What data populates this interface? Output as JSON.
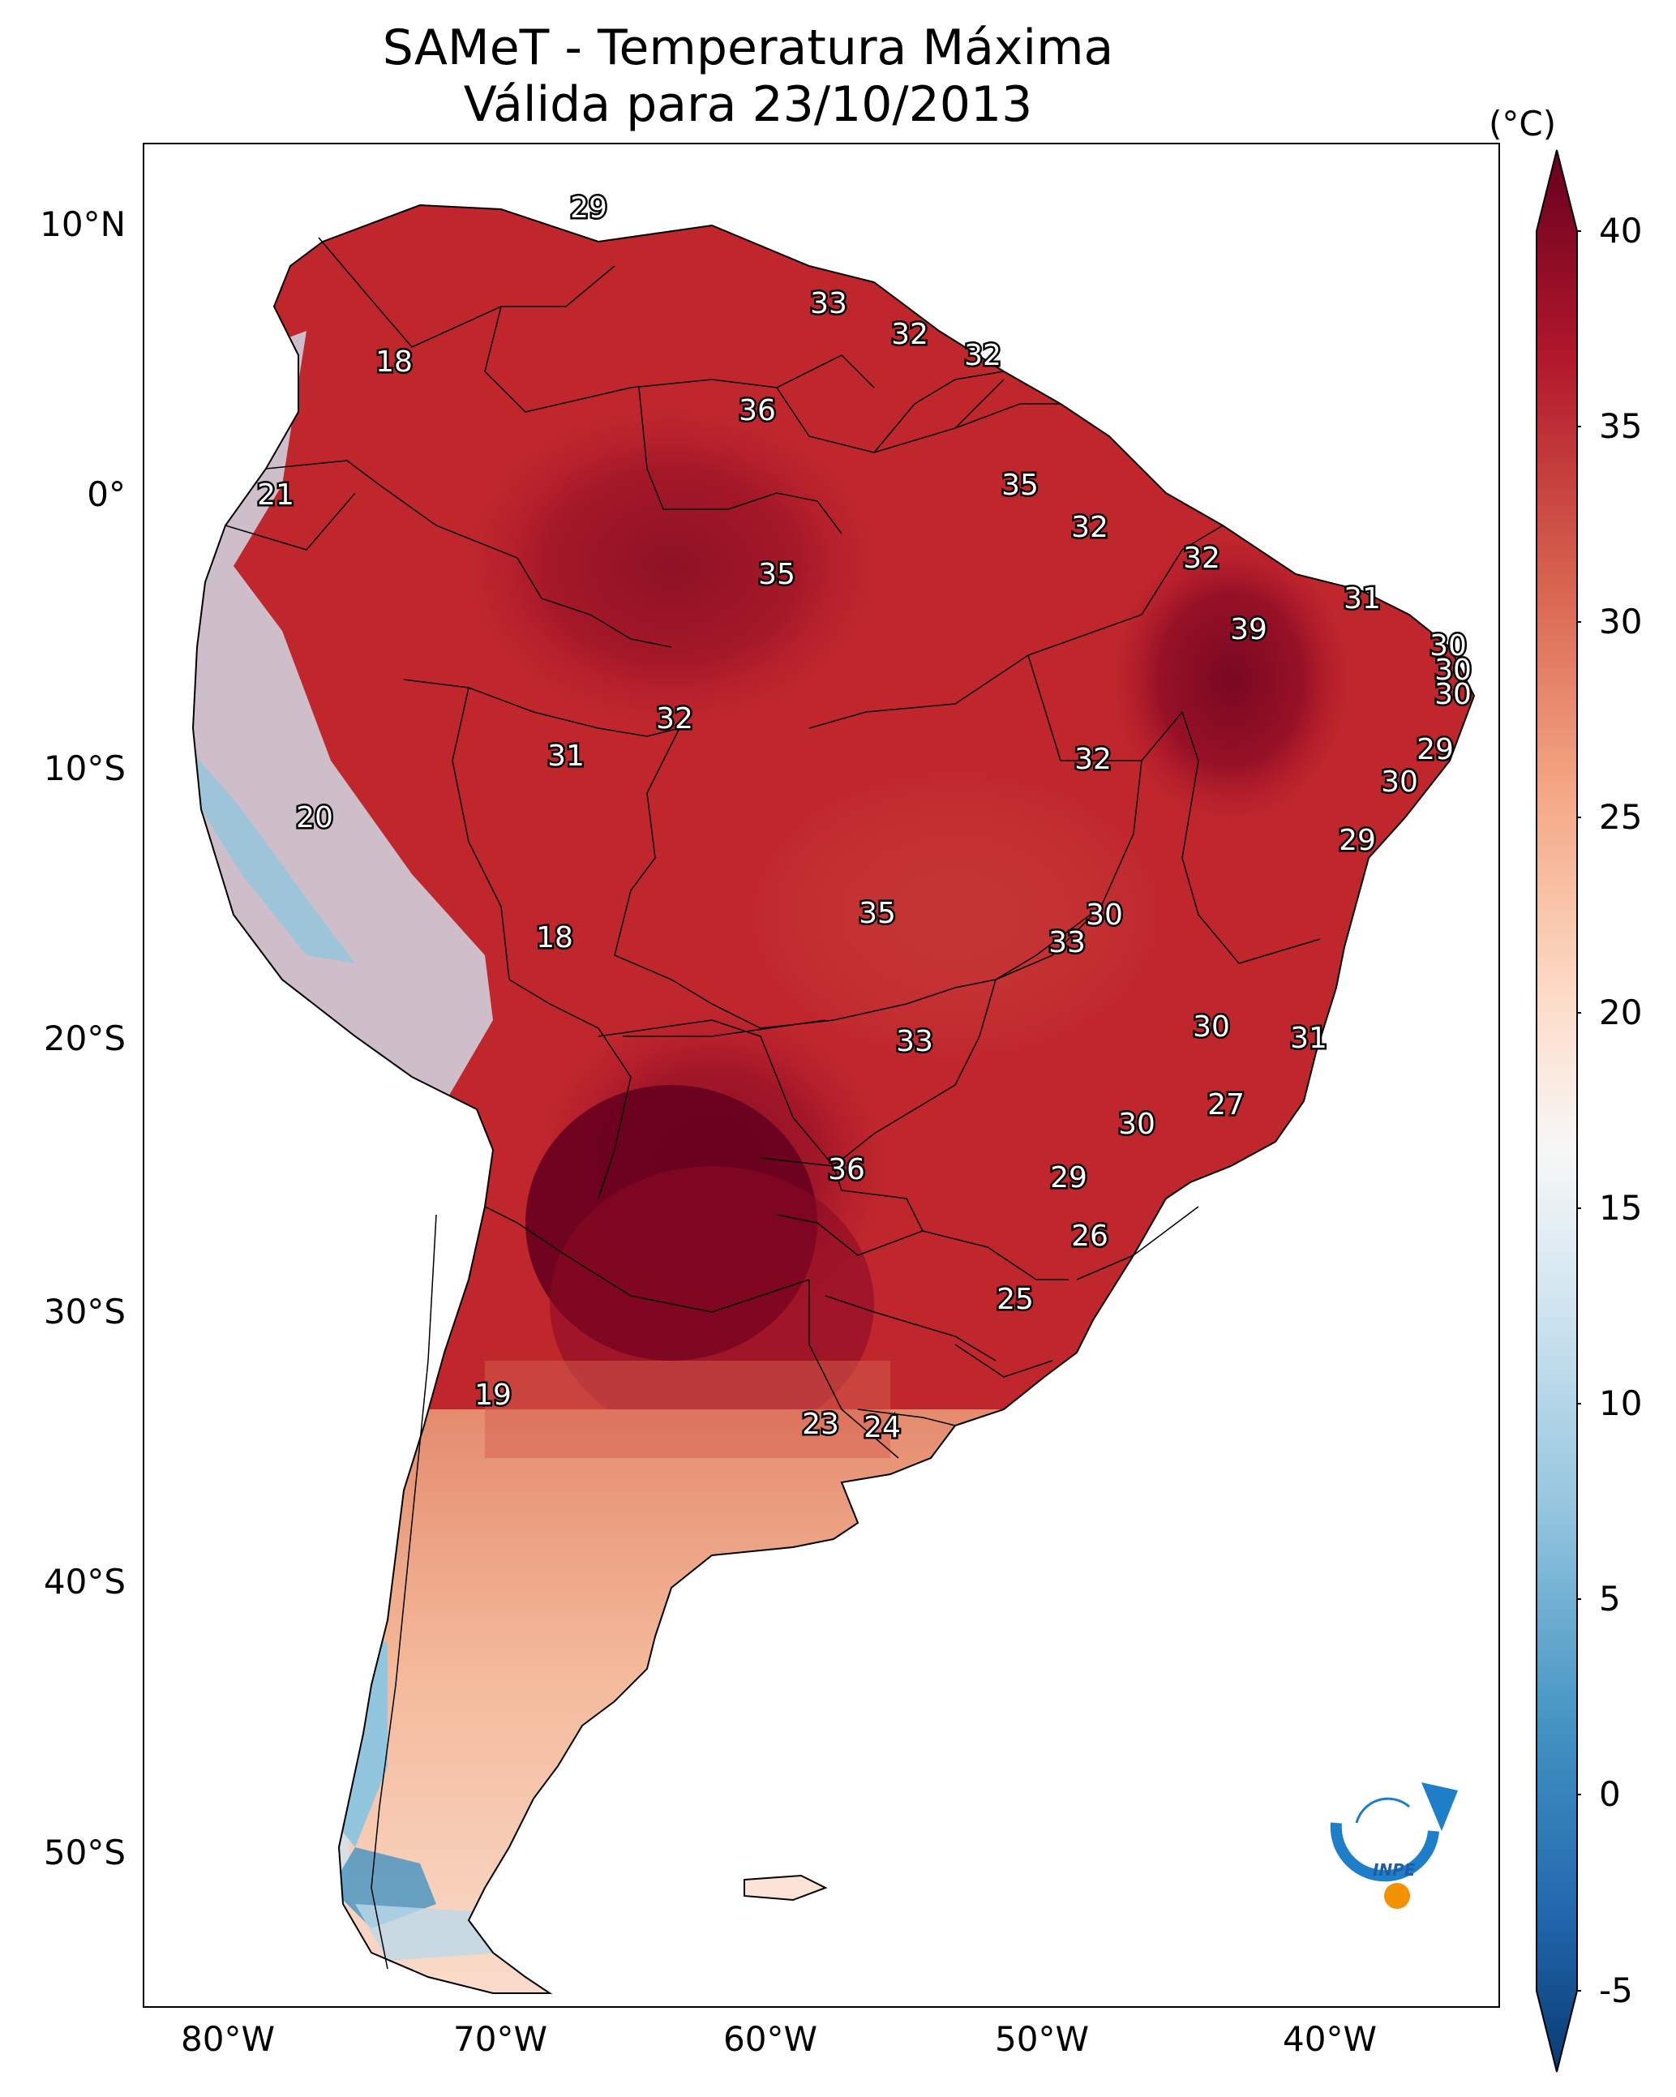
{
  "title": {
    "line1": "SAMeT - Temperatura Máxima",
    "line2": "Válida para 23/10/2013"
  },
  "axes": {
    "lat_labels": [
      "10°N",
      "0°",
      "10°S",
      "20°S",
      "30°S",
      "40°S",
      "50°S"
    ],
    "lon_labels": [
      "80°W",
      "70°W",
      "60°W",
      "50°W",
      "40°W"
    ]
  },
  "colorbar": {
    "unit": "(°C)",
    "ticks": [
      "40",
      "35",
      "30",
      "25",
      "20",
      "15",
      "10",
      "5",
      "0",
      "-5"
    ],
    "range": [
      -5,
      40
    ],
    "colors": [
      "#083a73",
      "#2166ac",
      "#4393c3",
      "#92c5de",
      "#d1e5f0",
      "#f7f7f7",
      "#fddbc7",
      "#f4a582",
      "#d6604d",
      "#b2182b",
      "#67001f"
    ]
  },
  "logo": {
    "label": "INPE"
  },
  "station_values": [
    {
      "name": "caribbean-coast",
      "value": "29"
    },
    {
      "name": "guiana-1",
      "value": "33"
    },
    {
      "name": "guiana-2",
      "value": "32"
    },
    {
      "name": "guiana-3",
      "value": "32"
    },
    {
      "name": "colombia-andes",
      "value": "18"
    },
    {
      "name": "roraima",
      "value": "36"
    },
    {
      "name": "amapa",
      "value": "35"
    },
    {
      "name": "ecuador",
      "value": "21"
    },
    {
      "name": "belem",
      "value": "32"
    },
    {
      "name": "maranhao-coast",
      "value": "32"
    },
    {
      "name": "amazonas",
      "value": "35"
    },
    {
      "name": "fortaleza",
      "value": "31"
    },
    {
      "name": "piaui",
      "value": "39"
    },
    {
      "name": "natal",
      "value": "30"
    },
    {
      "name": "joao-pessoa",
      "value": "30"
    },
    {
      "name": "recife",
      "value": "30"
    },
    {
      "name": "acre-1",
      "value": "32"
    },
    {
      "name": "acre-2",
      "value": "31"
    },
    {
      "name": "tocantins",
      "value": "32"
    },
    {
      "name": "maceio",
      "value": "29"
    },
    {
      "name": "aracaju",
      "value": "30"
    },
    {
      "name": "peru-andes",
      "value": "20"
    },
    {
      "name": "salvador",
      "value": "29"
    },
    {
      "name": "mato-grosso",
      "value": "35"
    },
    {
      "name": "goias-1",
      "value": "30"
    },
    {
      "name": "goias-2",
      "value": "33"
    },
    {
      "name": "bolivia-andes",
      "value": "18"
    },
    {
      "name": "minas",
      "value": "30"
    },
    {
      "name": "espirito-santo",
      "value": "31"
    },
    {
      "name": "mato-grosso-sul",
      "value": "33"
    },
    {
      "name": "rio",
      "value": "27"
    },
    {
      "name": "sao-paulo",
      "value": "30"
    },
    {
      "name": "paraguay",
      "value": "36"
    },
    {
      "name": "parana",
      "value": "29"
    },
    {
      "name": "santa-catarina",
      "value": "26"
    },
    {
      "name": "rio-grande-sul",
      "value": "25"
    },
    {
      "name": "chile-central",
      "value": "19"
    },
    {
      "name": "buenos-aires",
      "value": "23"
    },
    {
      "name": "montevideo",
      "value": "24"
    }
  ]
}
